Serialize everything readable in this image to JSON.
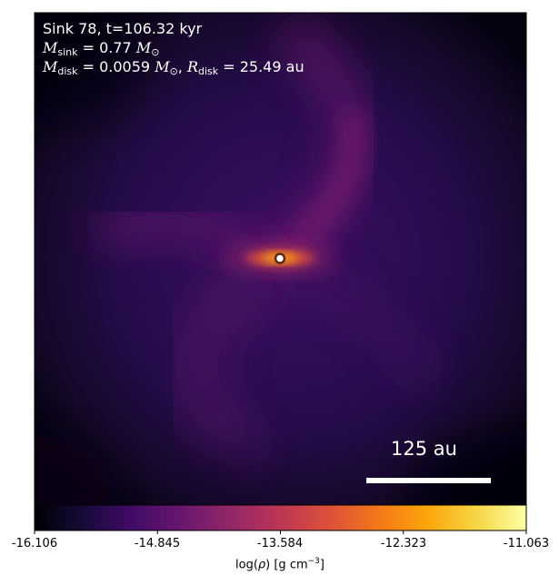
{
  "annotations": {
    "line1": "Sink 78, t=106.32 kyr",
    "msink_value": "0.77",
    "mdisk_value": "0.0059",
    "rdisk_value": "25.49",
    "unit_au": "au"
  },
  "scale_bar": {
    "label": "125 au",
    "length_au": 125
  },
  "colorbar": {
    "colormap": "inferno",
    "label_prefix": "log(",
    "label_suffix": ") [g cm",
    "label_exponent": "−3",
    "ticks": [
      "-16.106",
      "-14.845",
      "-13.584",
      "-12.323",
      "-11.063"
    ],
    "vmin": -16.106,
    "vmax": -11.063
  },
  "chart_data": {
    "type": "heatmap",
    "title": "Sink 78, t=106.32 kyr",
    "quantity": "log(ρ) [g cm^-3]",
    "colormap": "inferno",
    "range": [
      -16.106,
      -11.063
    ],
    "sink": {
      "id": 78,
      "t_kyr": 106.32,
      "M_sink_Msun": 0.77,
      "M_disk_Msun": 0.0059,
      "R_disk_au": 25.49
    },
    "scale_bar_au": 125
  }
}
